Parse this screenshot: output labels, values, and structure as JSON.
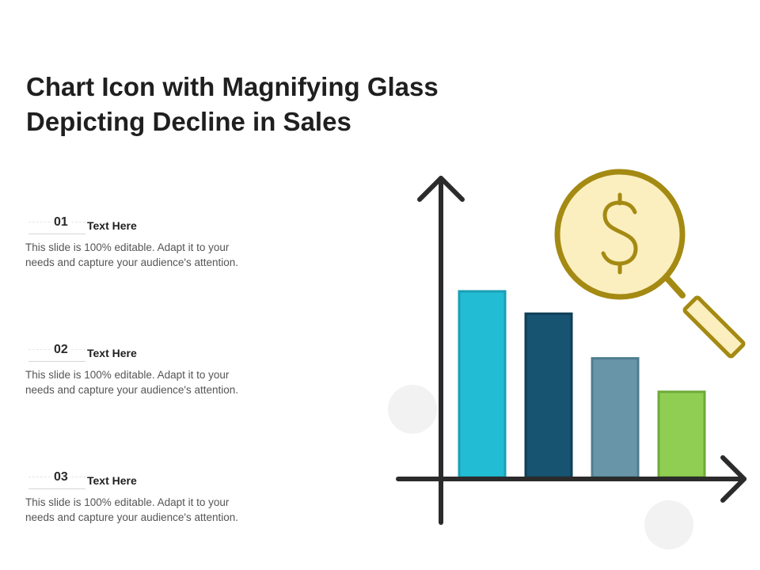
{
  "slide": {
    "title_line1": "Chart Icon with Magnifying Glass",
    "title_line2": "Depicting Decline in Sales"
  },
  "items": [
    {
      "number": "01",
      "title": "Text Here",
      "desc_line1": "This slide is 100% editable. Adapt it to your",
      "desc_line2": "needs and capture your audience's attention."
    },
    {
      "number": "02",
      "title": "Text Here",
      "desc_line1": "This slide is 100% editable. Adapt it to your",
      "desc_line2": "needs and capture your audience's attention."
    },
    {
      "number": "03",
      "title": "Text Here",
      "desc_line1": "This slide is 100% editable. Adapt it to your",
      "desc_line2": "needs and capture your audience's attention."
    }
  ],
  "illustration": {
    "bars": [
      {
        "level": 1.0,
        "color": "#22bcd4",
        "stroke": "#1a9fb5"
      },
      {
        "level": 0.88,
        "color": "#175472",
        "stroke": "#0f3f57"
      },
      {
        "level": 0.64,
        "color": "#6895a8",
        "stroke": "#4f7d91"
      },
      {
        "level": 0.46,
        "color": "#8fcd53",
        "stroke": "#6eaa38"
      }
    ],
    "axis_color": "#2b2b2b",
    "magnifier": {
      "icon": "dollar-sign-icon",
      "lens_fill": "#fbefc0",
      "rim_color": "#a48a12",
      "symbol": "$"
    },
    "decor_circle_color": "#f2f2f2"
  }
}
